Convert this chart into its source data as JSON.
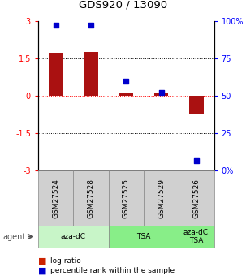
{
  "title": "GDS920 / 13090",
  "samples": [
    "GSM27524",
    "GSM27528",
    "GSM27525",
    "GSM27529",
    "GSM27526"
  ],
  "log_ratios": [
    1.72,
    1.77,
    0.09,
    0.1,
    -0.7
  ],
  "percentile_ranks": [
    97.0,
    97.0,
    60.0,
    52.0,
    7.0
  ],
  "ylim_left": [
    -3,
    3
  ],
  "ylim_right": [
    0,
    100
  ],
  "yticks_left": [
    -3,
    -1.5,
    0,
    1.5,
    3
  ],
  "ytick_labels_left": [
    "-3",
    "-1.5",
    "0",
    "1.5",
    "3"
  ],
  "ytick_labels_right": [
    "0%",
    "25",
    "50",
    "75",
    "100%"
  ],
  "agent_specs": [
    {
      "label": "aza-dC",
      "start": 0,
      "end": 2,
      "color": "#c8f5c8"
    },
    {
      "label": "TSA",
      "start": 2,
      "end": 4,
      "color": "#88ee88"
    },
    {
      "label": "aza-dC,\nTSA",
      "start": 4,
      "end": 5,
      "color": "#88ee88"
    }
  ],
  "bar_color": "#aa1111",
  "dot_color": "#0000cc",
  "bar_width": 0.4,
  "dot_size": 25,
  "legend_bar_color": "#cc2200",
  "legend_dot_color": "#0000cc",
  "background_color": "#ffffff"
}
